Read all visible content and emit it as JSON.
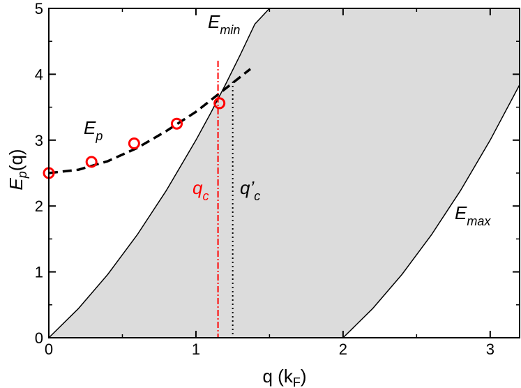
{
  "chart_data": {
    "type": "line",
    "xlabel": "q (k",
    "xlabel_sub": "F",
    "xlabel_tail": ")",
    "ylabel_main": "E",
    "ylabel_sub": "p",
    "ylabel_tail": "(q)",
    "xlim": [
      0,
      3.2
    ],
    "ylim": [
      0,
      5
    ],
    "x_ticks": [
      0,
      1,
      2,
      3
    ],
    "x_tick_labels": [
      "0",
      "1",
      "2",
      "3"
    ],
    "x_minor_ticks": [
      0.5,
      1.5,
      2.5
    ],
    "y_ticks": [
      0,
      1,
      2,
      3,
      4,
      5
    ],
    "y_tick_labels": [
      "0",
      "1",
      "2",
      "3",
      "4",
      "5"
    ],
    "y_minor_ticks": [
      0.5,
      1.5,
      2.5,
      3.5,
      4.5
    ],
    "grid": false,
    "colors": {
      "band": "#dcdcdc",
      "boundary": "#000000",
      "dispersion": "#000000",
      "points": "#ff0000",
      "qc_line": "#ff0000",
      "qc_prime_line": "#000000"
    },
    "band_region": "between E_min and E_max",
    "series": [
      {
        "label": "E_min",
        "style": "solid",
        "x": [
          0,
          0.2,
          0.4,
          0.6,
          0.8,
          1.0,
          1.1,
          1.2,
          1.3,
          1.4,
          1.5
        ],
        "y": [
          0,
          0.44,
          0.96,
          1.56,
          2.24,
          3.0,
          3.41,
          3.84,
          4.29,
          4.76,
          5.0
        ]
      },
      {
        "label": "E_max",
        "style": "solid",
        "x": [
          2.0,
          2.2,
          2.4,
          2.6,
          2.8,
          3.0,
          3.2
        ],
        "y": [
          0,
          0.44,
          0.96,
          1.56,
          2.24,
          3.0,
          3.84
        ]
      },
      {
        "label": "E_p",
        "style": "dashed",
        "x": [
          0,
          0.2,
          0.4,
          0.6,
          0.8,
          1.0,
          1.2,
          1.37
        ],
        "y": [
          2.5,
          2.55,
          2.68,
          2.88,
          3.14,
          3.43,
          3.78,
          4.08
        ]
      },
      {
        "label": "points",
        "style": "markers",
        "x": [
          0.0,
          0.29,
          0.58,
          0.87,
          1.16
        ],
        "y": [
          2.5,
          2.67,
          2.95,
          3.25,
          3.56
        ]
      }
    ],
    "vertical_lines": [
      {
        "label": "q_c",
        "x": 1.15,
        "style": "dash-dot"
      },
      {
        "label": "q'_c",
        "x": 1.25,
        "style": "dotted"
      }
    ],
    "annotations": {
      "emin_main": "E",
      "emin_sub": "min",
      "emax_main": "E",
      "emax_sub": "max",
      "ep_main": "E",
      "ep_sub": "p",
      "qc_main": "q",
      "qc_sub": "c",
      "qcp_main": "q’",
      "qcp_sub": "c"
    }
  }
}
